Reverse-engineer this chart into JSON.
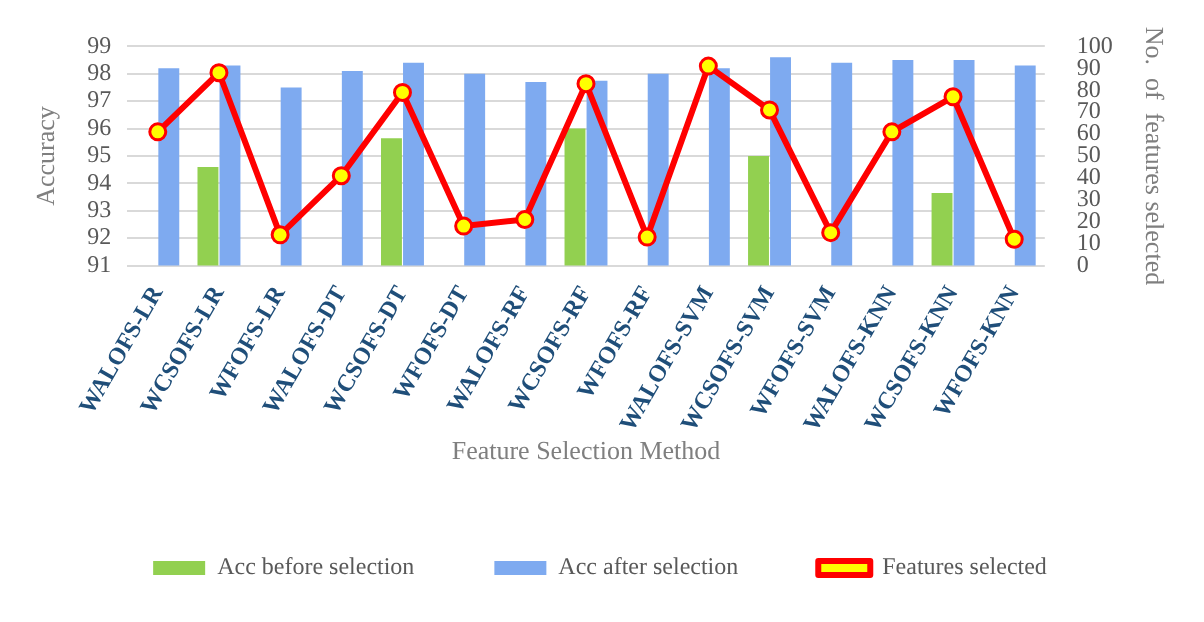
{
  "chart_data": {
    "type": "bar",
    "xlabel": "Feature Selection Method",
    "ylabel": "Accuracy",
    "y2label": "No.  of  features selected",
    "categories": [
      "WALOFS-LR",
      "WCSOFS-LR",
      "WFOFS-LR",
      "WALOFS-DT",
      "WCSOFS-DT",
      "WFOFS-DT",
      "WALOFS-RF",
      "WCSOFS-RF",
      "WFOFS-RF",
      "WALOFS-SVM",
      "WCSOFS-SVM",
      "WFOFS-SVM",
      "WALOFS-KNN",
      "WCSOFS-KNN",
      "WFOFS-KNN"
    ],
    "series": [
      {
        "name": "Acc before selection",
        "color": "#92d050",
        "values": [
          null,
          94.6,
          null,
          null,
          95.65,
          null,
          null,
          96.0,
          null,
          null,
          95.0,
          null,
          null,
          93.65,
          null
        ]
      },
      {
        "name": "Acc after selection",
        "color": "#7eaaf0",
        "values": [
          98.2,
          98.3,
          97.5,
          98.1,
          98.4,
          98.0,
          97.7,
          97.75,
          98.0,
          98.2,
          98.6,
          98.4,
          98.5,
          98.5,
          98.3
        ]
      },
      {
        "name": "Features selected",
        "type": "line",
        "axis": "y2",
        "color": "#ff0000",
        "marker": "circle",
        "values": [
          61,
          88,
          14,
          41,
          79,
          18,
          21,
          83,
          13,
          91,
          71,
          15,
          61,
          77,
          12
        ]
      }
    ],
    "ylim": [
      91,
      99
    ],
    "yticks": [
      91,
      92,
      93,
      94,
      95,
      96,
      97,
      98,
      99
    ],
    "y2lim": [
      0,
      100
    ],
    "y2ticks": [
      0,
      10,
      20,
      30,
      40,
      50,
      60,
      70,
      80,
      90,
      100
    ],
    "grid": "y",
    "legend": "bottom"
  }
}
